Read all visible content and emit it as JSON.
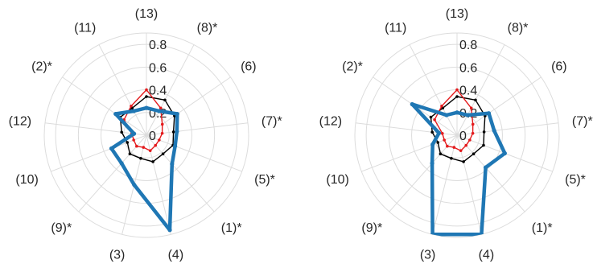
{
  "chart_data": [
    {
      "type": "radar",
      "categories": [
        "(13)",
        "(8)*",
        "(6)",
        "(7)*",
        "(5)*",
        "(1)*",
        "(4)",
        "(3)",
        "(9)*",
        "(10)",
        "(12)",
        "(2)*",
        "(11)"
      ],
      "radial_ticks": [
        "0",
        "0.2",
        "0.4",
        "0.6",
        "0.8"
      ],
      "rlim": [
        0,
        0.9
      ],
      "series": [
        {
          "color": "#000000",
          "values": [
            0.34,
            0.35,
            0.3,
            0.24,
            0.25,
            0.22,
            0.24,
            0.21,
            0.22,
            0.18,
            0.22,
            0.28,
            0.27
          ]
        },
        {
          "color": "#e41a1c",
          "values": [
            0.4,
            0.27,
            0.17,
            0.14,
            0.12,
            0.12,
            0.14,
            0.11,
            0.13,
            0.12,
            0.13,
            0.24,
            0.29
          ]
        },
        {
          "color": "#1f77b4",
          "values": [
            0.24,
            0.24,
            0.33,
            0.27,
            0.27,
            0.34,
            0.86,
            0.45,
            0.33,
            0.33,
            0.11,
            0.33,
            0.24
          ]
        }
      ]
    },
    {
      "type": "radar",
      "categories": [
        "(13)",
        "(8)*",
        "(6)",
        "(7)*",
        "(5)*",
        "(1)*",
        "(4)",
        "(3)",
        "(9)*",
        "(10)",
        "(12)",
        "(2)*",
        "(11)"
      ],
      "radial_ticks": [
        "0",
        "0.2",
        "0.4",
        "0.6",
        "0.8"
      ],
      "rlim": [
        0,
        0.9
      ],
      "series": [
        {
          "color": "#000000",
          "values": [
            0.34,
            0.35,
            0.3,
            0.24,
            0.25,
            0.22,
            0.24,
            0.21,
            0.22,
            0.18,
            0.22,
            0.28,
            0.27
          ]
        },
        {
          "color": "#e41a1c",
          "values": [
            0.4,
            0.27,
            0.17,
            0.14,
            0.12,
            0.12,
            0.14,
            0.11,
            0.13,
            0.12,
            0.13,
            0.24,
            0.29
          ]
        },
        {
          "color": "#1f77b4",
          "values": [
            0.2,
            0.2,
            0.34,
            0.33,
            0.45,
            0.38,
            1.0,
            0.97,
            0.33,
            0.23,
            0.16,
            0.48,
            0.2
          ]
        }
      ]
    }
  ]
}
